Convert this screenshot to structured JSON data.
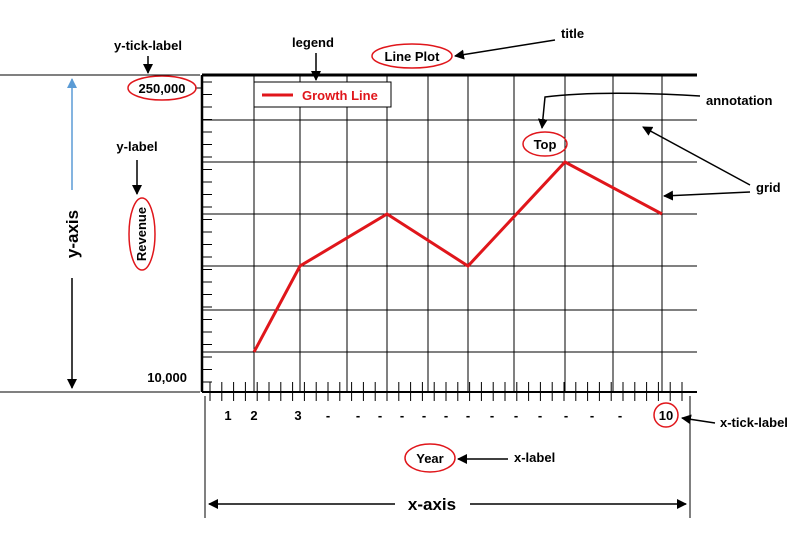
{
  "title": "Line Plot",
  "legend": {
    "entry": "Growth Line",
    "color": "#e0161b"
  },
  "y_tick_labels": {
    "top": "250,000",
    "bottom": "10,000"
  },
  "x_tick_labels": [
    "1",
    "2",
    "3",
    "-",
    "-",
    "-",
    "-",
    "-",
    "-",
    "-",
    "-",
    "-",
    "-",
    "-",
    "-",
    "-",
    "10"
  ],
  "y_label": "Revenue",
  "x_label": "Year",
  "annotation_text": "Top",
  "callouts": {
    "y_tick_label": "y-tick-label",
    "legend": "legend",
    "title": "title",
    "annotation": "annotation",
    "y_label": "y-label",
    "grid": "grid",
    "y_axis": "y-axis",
    "x_tick_label": "x-tick-label",
    "x_label": "x-label",
    "x_axis": "x-axis"
  },
  "chart_data": {
    "type": "line",
    "x": [
      2,
      3,
      4,
      5,
      6,
      7
    ],
    "series": [
      {
        "name": "Growth Line",
        "values": [
          1,
          2,
          3,
          2,
          4,
          3
        ]
      }
    ]
  },
  "colors": {
    "series": "#e0161b",
    "highlight": "#e0161b",
    "frame": "#000000",
    "grid": "#000000",
    "y_axis_arrow": "#5b9bd5"
  }
}
